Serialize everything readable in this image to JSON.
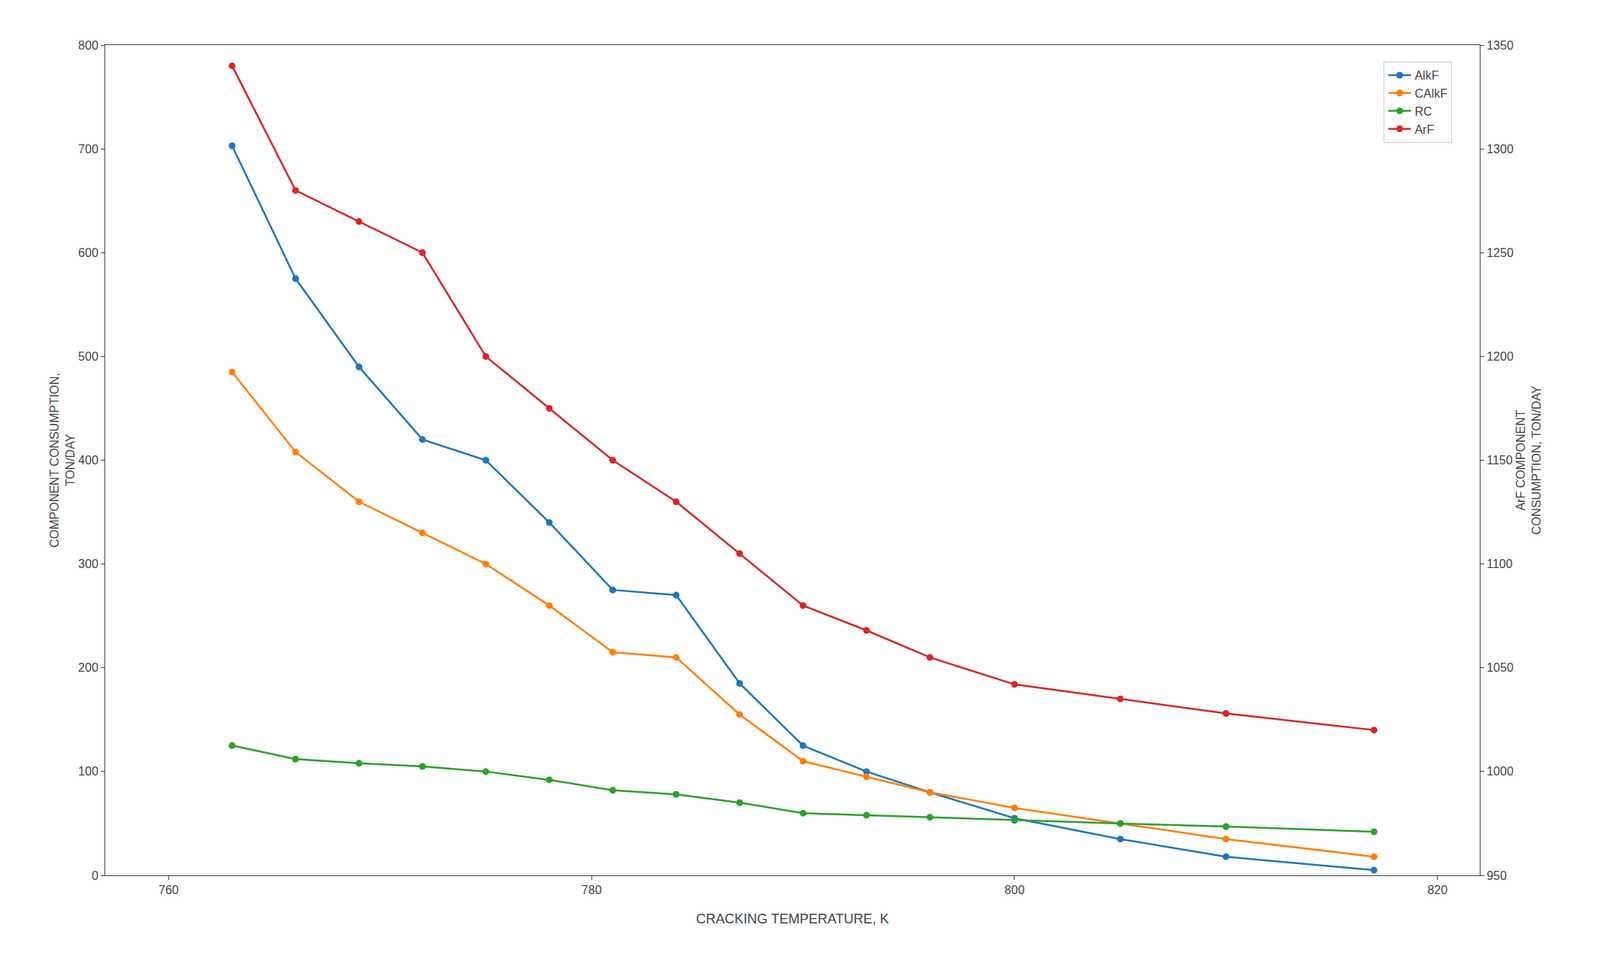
{
  "chart_data": {
    "type": "line",
    "xlabel": "CRACKING TEMPERATURE, K",
    "ylabel": "COMPONENT CONSUMPTION,\nTON/DAY",
    "y2label": "ArF COMPONENT\nCONSUMPTION, TON/DAY",
    "x": [
      763,
      766,
      769,
      772,
      775,
      778,
      781,
      784,
      787,
      790,
      793,
      796,
      800,
      805,
      810,
      817
    ],
    "series": [
      {
        "name": "AlkF",
        "values": [
          703,
          575,
          490,
          420,
          400,
          340,
          275,
          270,
          185,
          125,
          100,
          80,
          55,
          35,
          18,
          5
        ]
      },
      {
        "name": "CAlkF",
        "values": [
          485,
          408,
          360,
          330,
          300,
          260,
          215,
          210,
          155,
          110,
          95,
          80,
          65,
          50,
          35,
          18
        ]
      },
      {
        "name": "RC",
        "values": [
          125,
          112,
          108,
          105,
          100,
          92,
          82,
          78,
          70,
          60,
          58,
          56,
          53,
          50,
          47,
          42
        ]
      },
      {
        "name": "ArF",
        "axis": "y2",
        "values": [
          1340,
          1280,
          1265,
          1250,
          1200,
          1175,
          1150,
          1130,
          1105,
          1080,
          1068,
          1055,
          1042,
          1035,
          1028,
          1020
        ]
      }
    ],
    "xlim": [
      757,
      822
    ],
    "xticks": [
      760,
      780,
      800,
      820
    ],
    "ylim": [
      0,
      800
    ],
    "yticks": [
      0,
      100,
      200,
      300,
      400,
      500,
      600,
      700,
      800
    ],
    "y2lim": [
      950,
      1350
    ],
    "y2ticks": [
      950,
      1000,
      1050,
      1100,
      1150,
      1200,
      1250,
      1300,
      1350
    ],
    "marker": "circle",
    "grid": false,
    "legend": "upper right"
  }
}
